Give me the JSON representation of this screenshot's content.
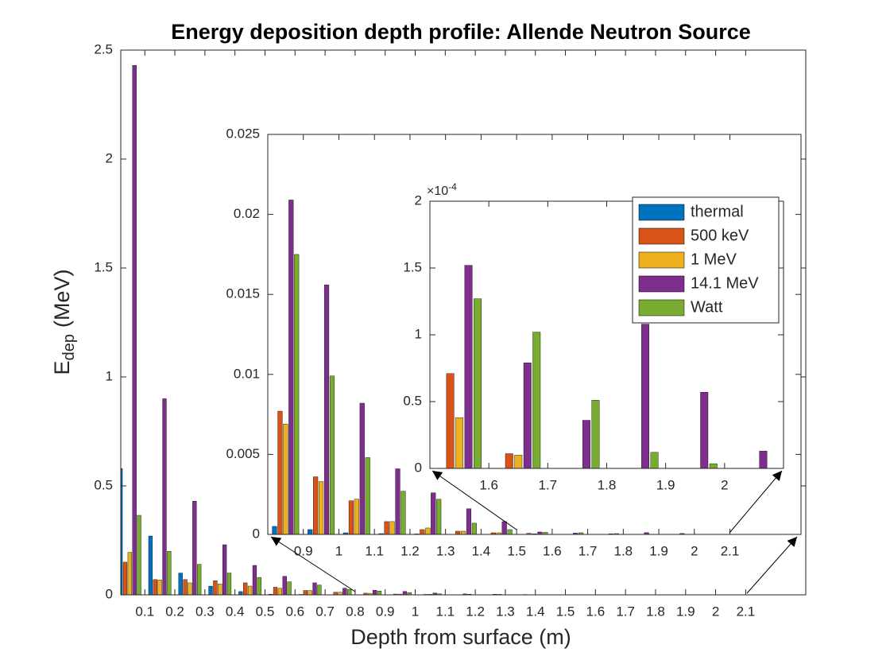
{
  "chart_data": {
    "type": "bar",
    "title": "Energy deposition depth profile: Allende Neutron Source",
    "xlabel": "Depth from surface (m)",
    "ylabel": {
      "main": "E",
      "subscript": "dep",
      "unit": "(MeV)"
    },
    "x": [
      0.05,
      0.15,
      0.25,
      0.35,
      0.45,
      0.55,
      0.65,
      0.75,
      0.85,
      0.95,
      1.05,
      1.15,
      1.25,
      1.35,
      1.45,
      1.55,
      1.65,
      1.75,
      1.85,
      1.95,
      2.05
    ],
    "series": [
      {
        "name": "thermal",
        "color": "#0072BD",
        "values": [
          0.58,
          0.27,
          0.1,
          0.04,
          0.015,
          0.003,
          0.002,
          0.001,
          0.0005,
          0.0003,
          0.0001,
          5e-05,
          3e-05,
          0,
          0,
          0,
          0,
          0,
          0,
          0,
          0
        ]
      },
      {
        "name": "500 keV",
        "color": "#D95319",
        "values": [
          0.15,
          0.07,
          0.07,
          0.065,
          0.055,
          0.035,
          0.02,
          0.012,
          0.0077,
          0.0036,
          0.0021,
          0.0008,
          0.0003,
          0.0002,
          0.0001,
          7.1e-05,
          1.1e-05,
          0,
          0,
          0,
          0
        ]
      },
      {
        "name": "1 MeV",
        "color": "#EDB120",
        "values": [
          0.195,
          0.068,
          0.055,
          0.05,
          0.04,
          0.03,
          0.02,
          0.012,
          0.0069,
          0.0033,
          0.0022,
          0.0008,
          0.0004,
          0.0002,
          0.0001,
          3.8e-05,
          1e-05,
          0,
          0,
          0,
          0
        ]
      },
      {
        "name": "14.1 MeV",
        "color": "#7E2F8E",
        "values": [
          2.43,
          0.9,
          0.43,
          0.23,
          0.135,
          0.085,
          0.055,
          0.03,
          0.0209,
          0.0156,
          0.0082,
          0.0041,
          0.0026,
          0.0016,
          0.0008,
          0.000152,
          7.9e-05,
          3.6e-05,
          0.000108,
          5.7e-05,
          1.3e-05
        ]
      },
      {
        "name": "Watt",
        "color": "#77AC30",
        "values": [
          0.365,
          0.2,
          0.14,
          0.1,
          0.08,
          0.06,
          0.045,
          0.025,
          0.0175,
          0.0099,
          0.0048,
          0.0027,
          0.0022,
          0.0007,
          0.0003,
          0.000127,
          0.000102,
          5.1e-05,
          1.2e-05,
          3.5e-06,
          0
        ]
      }
    ],
    "xlim": [
      0.02,
      2.3
    ],
    "ylim": [
      0,
      2.5
    ],
    "xticks": [
      0.1,
      0.2,
      0.3,
      0.4,
      0.5,
      0.6,
      0.7,
      0.8,
      0.9,
      1,
      1.1,
      1.2,
      1.3,
      1.4,
      1.5,
      1.6,
      1.7,
      1.8,
      1.9,
      2,
      2.1
    ],
    "yticks": [
      0,
      0.5,
      1,
      1.5,
      2,
      2.5
    ],
    "grid": false,
    "insets": [
      {
        "xlim": [
          0.8,
          2.3
        ],
        "ylim": [
          0,
          0.025
        ],
        "xticks": [
          0.9,
          1,
          1.1,
          1.2,
          1.3,
          1.4,
          1.5,
          1.6,
          1.7,
          1.8,
          1.9,
          2,
          2.1
        ],
        "yticks": [
          0,
          0.005,
          0.01,
          0.015,
          0.02,
          0.025
        ]
      },
      {
        "xlim": [
          1.5,
          2.1
        ],
        "ylim": [
          0,
          0.0002
        ],
        "xticks": [
          1.6,
          1.7,
          1.8,
          1.9,
          2
        ],
        "yticks": [
          0,
          {
            "value": 5e-05,
            "label": "0.5"
          },
          {
            "value": 0.0001,
            "label": "1"
          },
          {
            "value": 0.00015,
            "label": "1.5"
          },
          {
            "value": 0.0002,
            "label": "2"
          }
        ],
        "y_scale_label": {
          "base": "×10",
          "power": "-4"
        },
        "legend": "northeast"
      }
    ]
  }
}
